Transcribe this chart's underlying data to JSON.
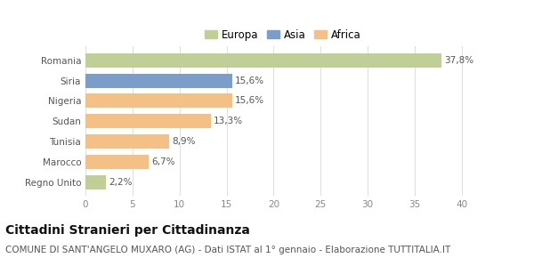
{
  "categories": [
    "Romania",
    "Siria",
    "Nigeria",
    "Sudan",
    "Tunisia",
    "Marocco",
    "Regno Unito"
  ],
  "values": [
    37.8,
    15.6,
    15.6,
    13.3,
    8.9,
    6.7,
    2.2
  ],
  "labels": [
    "37,8%",
    "15,6%",
    "15,6%",
    "13,3%",
    "8,9%",
    "6,7%",
    "2,2%"
  ],
  "colors": [
    "#bfcf96",
    "#7b9dc9",
    "#f5c085",
    "#f5c085",
    "#f5c085",
    "#f5c085",
    "#bfcf96"
  ],
  "legend": [
    {
      "label": "Europa",
      "color": "#bfcf96"
    },
    {
      "label": "Asia",
      "color": "#7b9dc9"
    },
    {
      "label": "Africa",
      "color": "#f5c085"
    }
  ],
  "xlim": [
    0,
    42
  ],
  "xticks": [
    0,
    5,
    10,
    15,
    20,
    25,
    30,
    35,
    40
  ],
  "title": "Cittadini Stranieri per Cittadinanza",
  "subtitle": "COMUNE DI SANT'ANGELO MUXARO (AG) - Dati ISTAT al 1° gennaio - Elaborazione TUTTITALIA.IT",
  "background_color": "#ffffff",
  "grid_color": "#e0e0e0",
  "title_fontsize": 10,
  "subtitle_fontsize": 7.5,
  "label_fontsize": 7.5,
  "tick_fontsize": 7.5,
  "legend_fontsize": 8.5
}
